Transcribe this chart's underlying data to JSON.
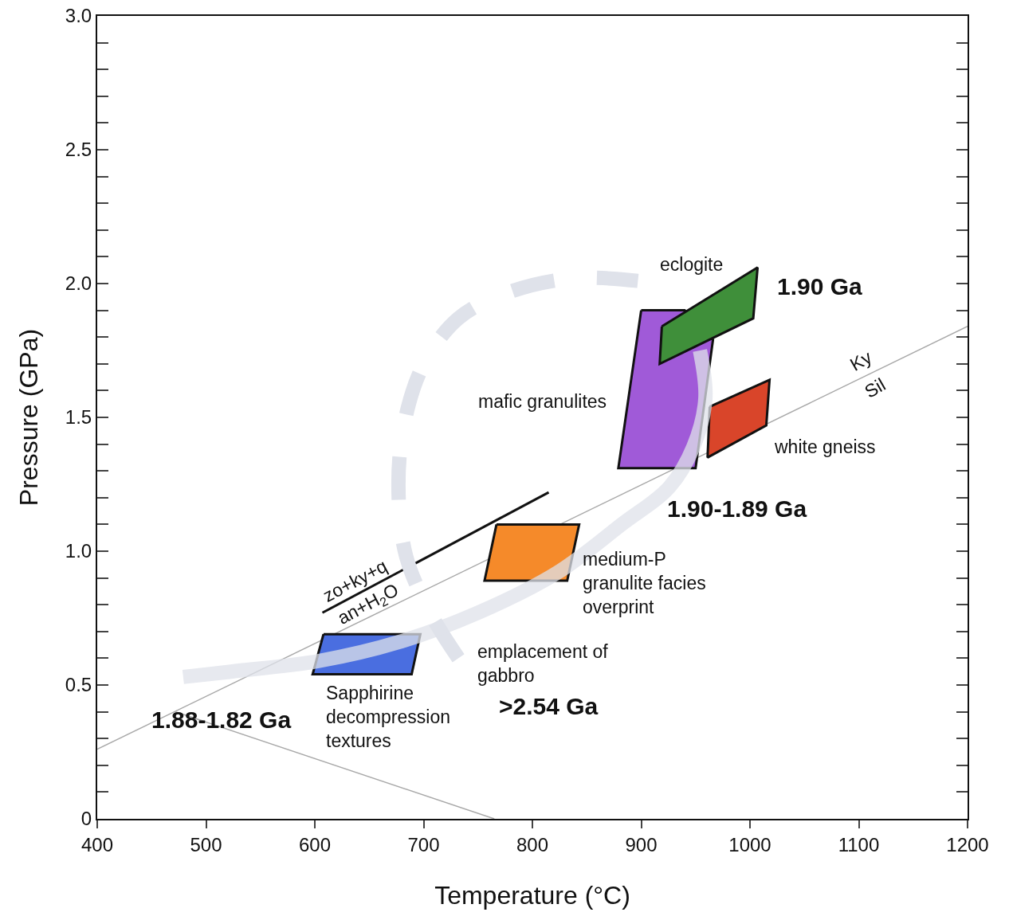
{
  "chart_data": {
    "type": "line",
    "xlabel": "Temperature (°C)",
    "ylabel": "Pressure (GPa)",
    "xlim": [
      400,
      1200
    ],
    "xticks": [
      400,
      500,
      600,
      700,
      800,
      900,
      1000,
      1100,
      1200
    ],
    "ylim": [
      0,
      3.0
    ],
    "yticks": [
      0,
      {
        "value": 0.1,
        "label": null
      },
      {
        "value": 0.2,
        "label": null
      },
      {
        "value": 0.3,
        "label": null
      },
      {
        "value": 0.4,
        "label": null
      },
      0.5,
      {
        "value": 0.6,
        "label": null
      },
      {
        "value": 0.7,
        "label": null
      },
      {
        "value": 0.8,
        "label": null
      },
      {
        "value": 0.9,
        "label": null
      },
      {
        "value": 1,
        "label": "1.0"
      },
      {
        "value": 1.1,
        "label": null
      },
      {
        "value": 1.2,
        "label": null
      },
      {
        "value": 1.3,
        "label": null
      },
      {
        "value": 1.4,
        "label": null
      },
      1.5,
      {
        "value": 1.6,
        "label": null
      },
      {
        "value": 1.7,
        "label": null
      },
      {
        "value": 1.8,
        "label": null
      },
      {
        "value": 1.9,
        "label": null
      },
      {
        "value": 2,
        "label": "2.0"
      },
      {
        "value": 2.1,
        "label": null
      },
      {
        "value": 2.2,
        "label": null
      },
      {
        "value": 2.3,
        "label": null
      },
      {
        "value": 2.4,
        "label": null
      },
      2.5,
      {
        "value": 2.6,
        "label": null
      },
      {
        "value": 2.7,
        "label": null
      },
      {
        "value": 2.8,
        "label": null
      },
      {
        "value": 2.9,
        "label": null
      },
      {
        "value": 3,
        "label": "3.0"
      }
    ],
    "series": [
      {
        "color": "#a8a8a8",
        "x": [
          400,
          1200
        ],
        "values": [
          0.26,
          1.84
        ]
      },
      {
        "color": "#a8a8a8",
        "x": [
          472,
          765
        ],
        "values": [
          0.4,
          0
        ]
      },
      {
        "color": "#111111",
        "x": [
          607,
          815
        ],
        "values": [
          0.77,
          1.22
        ]
      },
      {
        "type": "area",
        "color": "#a05ad8",
        "x": [
          900,
          940,
          966,
          950,
          879,
          900
        ],
        "values": [
          1.9,
          1.9,
          1.79,
          1.31,
          1.31,
          1.9
        ]
      },
      {
        "color": "#dfe2ea",
        "line_style": "dashed",
        "x": [
          732,
          706,
          684,
          677,
          681,
          699,
          732,
          780,
          838,
          897
        ],
        "values": [
          0.6,
          0.77,
          0.98,
          1.21,
          1.45,
          1.69,
          1.87,
          1.97,
          2.02,
          2.01
        ]
      },
      {
        "type": "area",
        "color": "#3f8f3a",
        "x": [
          919,
          1007,
          1003,
          917,
          919
        ],
        "values": [
          1.84,
          2.06,
          1.87,
          1.7,
          1.84
        ]
      },
      {
        "type": "area",
        "color": "#d9452a",
        "x": [
          963,
          1018,
          1015,
          961,
          963
        ],
        "values": [
          1.54,
          1.64,
          1.47,
          1.35,
          1.54
        ]
      },
      {
        "type": "area",
        "color": "#f58a2a",
        "x": [
          767,
          843,
          832,
          756,
          767
        ],
        "values": [
          1.1,
          1.1,
          0.89,
          0.89,
          1.1
        ]
      },
      {
        "type": "area",
        "color": "#4a6ee0",
        "x": [
          608,
          697,
          689,
          598,
          608
        ],
        "values": [
          0.69,
          0.69,
          0.54,
          0.54,
          0.69
        ]
      },
      {
        "color": "#dfe2ea",
        "x": [
          954,
          959,
          948,
          926,
          882,
          823,
          750,
          677,
          604,
          523,
          479
        ],
        "values": [
          1.75,
          1.57,
          1.39,
          1.24,
          1.1,
          0.92,
          0.77,
          0.66,
          0.59,
          0.55,
          0.53
        ]
      }
    ],
    "annotations": [
      "eclogite",
      "1.90 Ga",
      "mafic granulites",
      "Ky",
      "Sil",
      "white gneiss",
      "1.90-1.89 Ga",
      "medium-P\ngranulite facies\noverprint",
      "emplacement of\ngabbro",
      ">2.54 Ga",
      "Sapphirine\ndecompression\ntextures",
      "1.88-1.82 Ga",
      "zo+ky+q",
      "an+H$_{2}$O"
    ]
  }
}
